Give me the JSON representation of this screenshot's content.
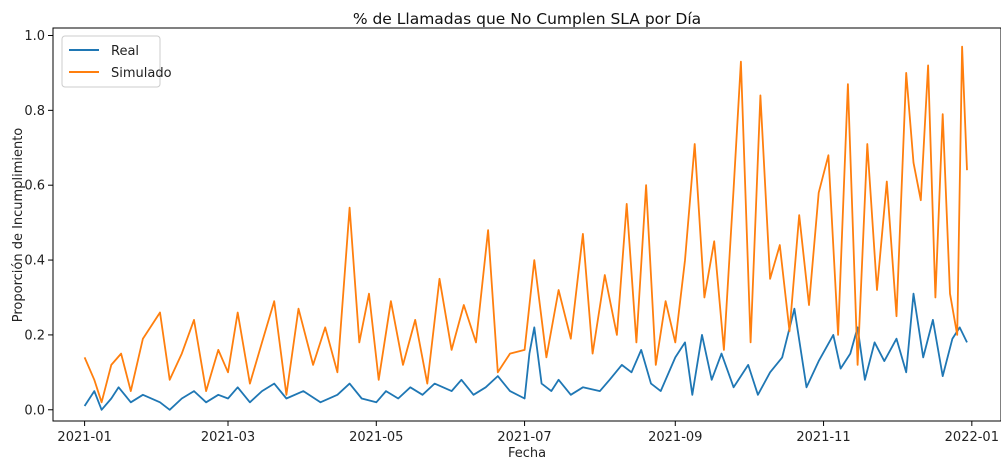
{
  "chart_data": {
    "type": "line",
    "title": "% de Llamadas que No Cumplen SLA por Día",
    "xlabel": "Fecha",
    "ylabel": "Proporción de Incumplimiento",
    "x_ticks": [
      "2021-01",
      "2021-03",
      "2021-05",
      "2021-07",
      "2021-09",
      "2021-11",
      "2022-01"
    ],
    "y_ticks": [
      "0.0",
      "0.2",
      "0.4",
      "0.6",
      "0.8",
      "1.0"
    ],
    "xlim": [
      "2020-12-19",
      "2022-01-13"
    ],
    "ylim": [
      -0.03,
      1.02
    ],
    "grid": false,
    "legend_position": "upper-left",
    "series": [
      {
        "name": "Real",
        "color": "#1f77b4",
        "points": [
          [
            "2021-01-01",
            0.01
          ],
          [
            "2021-01-05",
            0.05
          ],
          [
            "2021-01-08",
            0.0
          ],
          [
            "2021-01-12",
            0.03
          ],
          [
            "2021-01-15",
            0.06
          ],
          [
            "2021-01-20",
            0.02
          ],
          [
            "2021-01-25",
            0.04
          ],
          [
            "2021-02-01",
            0.02
          ],
          [
            "2021-02-05",
            0.0
          ],
          [
            "2021-02-10",
            0.03
          ],
          [
            "2021-02-15",
            0.05
          ],
          [
            "2021-02-20",
            0.02
          ],
          [
            "2021-02-25",
            0.04
          ],
          [
            "2021-03-01",
            0.03
          ],
          [
            "2021-03-05",
            0.06
          ],
          [
            "2021-03-10",
            0.02
          ],
          [
            "2021-03-15",
            0.05
          ],
          [
            "2021-03-20",
            0.07
          ],
          [
            "2021-03-25",
            0.03
          ],
          [
            "2021-04-01",
            0.05
          ],
          [
            "2021-04-08",
            0.02
          ],
          [
            "2021-04-15",
            0.04
          ],
          [
            "2021-04-20",
            0.07
          ],
          [
            "2021-04-25",
            0.03
          ],
          [
            "2021-05-01",
            0.02
          ],
          [
            "2021-05-05",
            0.05
          ],
          [
            "2021-05-10",
            0.03
          ],
          [
            "2021-05-15",
            0.06
          ],
          [
            "2021-05-20",
            0.04
          ],
          [
            "2021-05-25",
            0.07
          ],
          [
            "2021-06-01",
            0.05
          ],
          [
            "2021-06-05",
            0.08
          ],
          [
            "2021-06-10",
            0.04
          ],
          [
            "2021-06-15",
            0.06
          ],
          [
            "2021-06-20",
            0.09
          ],
          [
            "2021-06-25",
            0.05
          ],
          [
            "2021-07-01",
            0.03
          ],
          [
            "2021-07-03",
            0.15
          ],
          [
            "2021-07-05",
            0.22
          ],
          [
            "2021-07-08",
            0.07
          ],
          [
            "2021-07-12",
            0.05
          ],
          [
            "2021-07-15",
            0.08
          ],
          [
            "2021-07-20",
            0.04
          ],
          [
            "2021-07-25",
            0.06
          ],
          [
            "2021-08-01",
            0.05
          ],
          [
            "2021-08-05",
            0.08
          ],
          [
            "2021-08-10",
            0.12
          ],
          [
            "2021-08-14",
            0.1
          ],
          [
            "2021-08-18",
            0.16
          ],
          [
            "2021-08-22",
            0.07
          ],
          [
            "2021-08-26",
            0.05
          ],
          [
            "2021-09-01",
            0.14
          ],
          [
            "2021-09-05",
            0.18
          ],
          [
            "2021-09-08",
            0.04
          ],
          [
            "2021-09-12",
            0.2
          ],
          [
            "2021-09-16",
            0.08
          ],
          [
            "2021-09-20",
            0.15
          ],
          [
            "2021-09-25",
            0.06
          ],
          [
            "2021-10-01",
            0.12
          ],
          [
            "2021-10-05",
            0.04
          ],
          [
            "2021-10-10",
            0.1
          ],
          [
            "2021-10-15",
            0.14
          ],
          [
            "2021-10-20",
            0.27
          ],
          [
            "2021-10-25",
            0.06
          ],
          [
            "2021-10-30",
            0.13
          ],
          [
            "2021-11-05",
            0.2
          ],
          [
            "2021-11-08",
            0.11
          ],
          [
            "2021-11-12",
            0.15
          ],
          [
            "2021-11-15",
            0.22
          ],
          [
            "2021-11-18",
            0.08
          ],
          [
            "2021-11-22",
            0.18
          ],
          [
            "2021-11-26",
            0.13
          ],
          [
            "2021-12-01",
            0.19
          ],
          [
            "2021-12-05",
            0.1
          ],
          [
            "2021-12-08",
            0.31
          ],
          [
            "2021-12-12",
            0.14
          ],
          [
            "2021-12-16",
            0.24
          ],
          [
            "2021-12-20",
            0.09
          ],
          [
            "2021-12-24",
            0.19
          ],
          [
            "2021-12-27",
            0.22
          ],
          [
            "2021-12-30",
            0.18
          ]
        ]
      },
      {
        "name": "Simulado",
        "color": "#ff7f0e",
        "points": [
          [
            "2021-01-01",
            0.14
          ],
          [
            "2021-01-05",
            0.08
          ],
          [
            "2021-01-08",
            0.02
          ],
          [
            "2021-01-12",
            0.12
          ],
          [
            "2021-01-16",
            0.15
          ],
          [
            "2021-01-20",
            0.05
          ],
          [
            "2021-01-25",
            0.19
          ],
          [
            "2021-02-01",
            0.26
          ],
          [
            "2021-02-05",
            0.08
          ],
          [
            "2021-02-10",
            0.15
          ],
          [
            "2021-02-15",
            0.24
          ],
          [
            "2021-02-20",
            0.05
          ],
          [
            "2021-02-25",
            0.16
          ],
          [
            "2021-03-01",
            0.1
          ],
          [
            "2021-03-05",
            0.26
          ],
          [
            "2021-03-10",
            0.07
          ],
          [
            "2021-03-15",
            0.18
          ],
          [
            "2021-03-20",
            0.29
          ],
          [
            "2021-03-25",
            0.04
          ],
          [
            "2021-03-30",
            0.27
          ],
          [
            "2021-04-05",
            0.12
          ],
          [
            "2021-04-10",
            0.22
          ],
          [
            "2021-04-15",
            0.1
          ],
          [
            "2021-04-20",
            0.54
          ],
          [
            "2021-04-24",
            0.18
          ],
          [
            "2021-04-28",
            0.31
          ],
          [
            "2021-05-02",
            0.08
          ],
          [
            "2021-05-07",
            0.29
          ],
          [
            "2021-05-12",
            0.12
          ],
          [
            "2021-05-17",
            0.24
          ],
          [
            "2021-05-22",
            0.07
          ],
          [
            "2021-05-27",
            0.35
          ],
          [
            "2021-06-01",
            0.16
          ],
          [
            "2021-06-06",
            0.28
          ],
          [
            "2021-06-11",
            0.18
          ],
          [
            "2021-06-16",
            0.48
          ],
          [
            "2021-06-20",
            0.1
          ],
          [
            "2021-06-25",
            0.15
          ],
          [
            "2021-07-01",
            0.16
          ],
          [
            "2021-07-05",
            0.4
          ],
          [
            "2021-07-10",
            0.14
          ],
          [
            "2021-07-15",
            0.32
          ],
          [
            "2021-07-20",
            0.19
          ],
          [
            "2021-07-25",
            0.47
          ],
          [
            "2021-07-29",
            0.15
          ],
          [
            "2021-08-03",
            0.36
          ],
          [
            "2021-08-08",
            0.2
          ],
          [
            "2021-08-12",
            0.55
          ],
          [
            "2021-08-16",
            0.18
          ],
          [
            "2021-08-20",
            0.6
          ],
          [
            "2021-08-24",
            0.12
          ],
          [
            "2021-08-28",
            0.29
          ],
          [
            "2021-09-01",
            0.18
          ],
          [
            "2021-09-05",
            0.4
          ],
          [
            "2021-09-09",
            0.71
          ],
          [
            "2021-09-13",
            0.3
          ],
          [
            "2021-09-17",
            0.45
          ],
          [
            "2021-09-21",
            0.16
          ],
          [
            "2021-09-25",
            0.59
          ],
          [
            "2021-09-28",
            0.93
          ],
          [
            "2021-10-02",
            0.18
          ],
          [
            "2021-10-06",
            0.84
          ],
          [
            "2021-10-10",
            0.35
          ],
          [
            "2021-10-14",
            0.44
          ],
          [
            "2021-10-18",
            0.21
          ],
          [
            "2021-10-22",
            0.52
          ],
          [
            "2021-10-26",
            0.28
          ],
          [
            "2021-10-30",
            0.58
          ],
          [
            "2021-11-03",
            0.68
          ],
          [
            "2021-11-07",
            0.2
          ],
          [
            "2021-11-11",
            0.87
          ],
          [
            "2021-11-15",
            0.12
          ],
          [
            "2021-11-19",
            0.71
          ],
          [
            "2021-11-23",
            0.32
          ],
          [
            "2021-11-27",
            0.61
          ],
          [
            "2021-12-01",
            0.25
          ],
          [
            "2021-12-05",
            0.9
          ],
          [
            "2021-12-08",
            0.66
          ],
          [
            "2021-12-11",
            0.56
          ],
          [
            "2021-12-14",
            0.92
          ],
          [
            "2021-12-17",
            0.3
          ],
          [
            "2021-12-20",
            0.79
          ],
          [
            "2021-12-23",
            0.31
          ],
          [
            "2021-12-26",
            0.2
          ],
          [
            "2021-12-28",
            0.97
          ],
          [
            "2021-12-30",
            0.64
          ]
        ]
      }
    ]
  }
}
